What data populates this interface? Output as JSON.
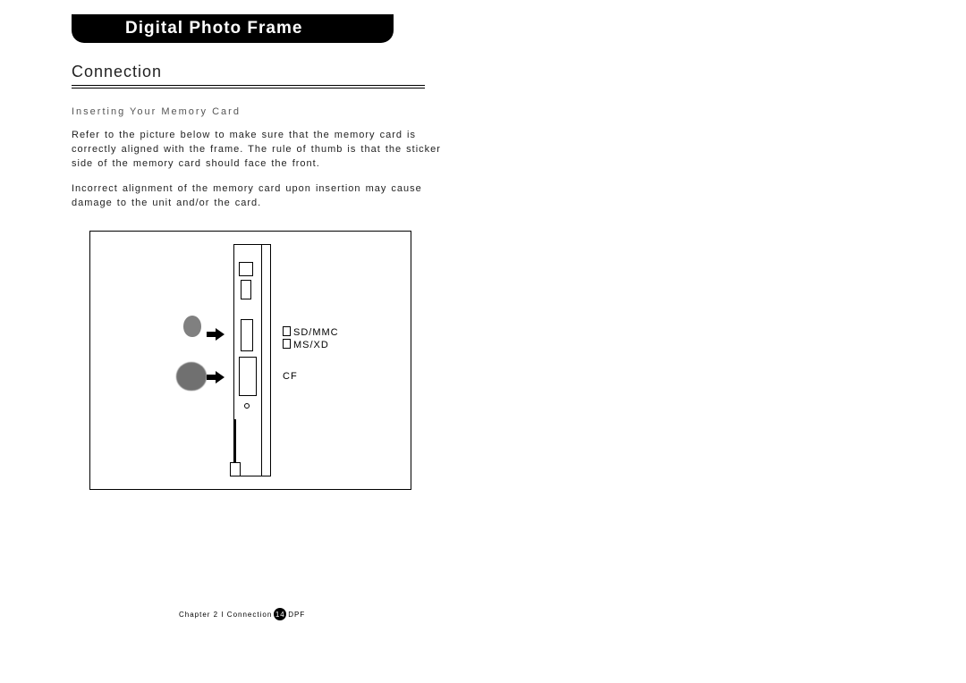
{
  "header": {
    "title": "Digital Photo Frame"
  },
  "section": {
    "title": "Connection"
  },
  "body": {
    "subhead": "Inserting Your Memory Card",
    "para1": "Refer to the picture below to make sure that the memory card is correctly aligned with the frame. The rule of thumb is that the sticker side of the memory card should face the front.",
    "para2": "Incorrect alignment of the memory card upon insertion may cause damage to the unit and/or the card."
  },
  "figure": {
    "label_sd": "SD/MMC",
    "label_ms": "MS/XD",
    "label_cf": "CF",
    "colors": {
      "border": "#000000",
      "card_small": "#808080",
      "card_big": "#707070",
      "background": "#ffffff"
    }
  },
  "footer": {
    "left": "Chapter 2 I Connection",
    "page": "14",
    "right": "DPF"
  }
}
